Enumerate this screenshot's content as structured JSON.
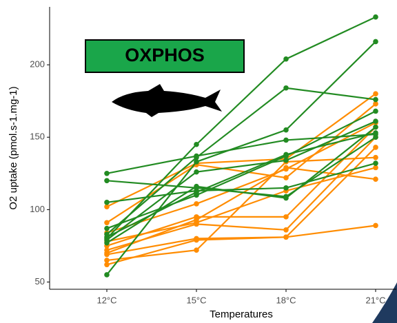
{
  "chart_data": {
    "type": "line",
    "annotation": "OXPHOS",
    "x_label": "Temperatures",
    "y_label": "O2 uptake (pmol.s-1.mg-1)",
    "categories": [
      "12°C",
      "15°C",
      "18°C",
      "21°C"
    ],
    "ylim": [
      45,
      240
    ],
    "yticks": [
      50,
      100,
      150,
      200
    ],
    "series": [
      {
        "color": "#ff8c00",
        "values": [
          102,
          132,
          135,
          180
        ]
      },
      {
        "color": "#ff8c00",
        "values": [
          91,
          131,
          122,
          173
        ]
      },
      {
        "color": "#ff8c00",
        "values": [
          84,
          104,
          128,
          160
        ]
      },
      {
        "color": "#ff8c00",
        "values": [
          75,
          95,
          95,
          157
        ]
      },
      {
        "color": "#ff8c00",
        "values": [
          72,
          90,
          86,
          150
        ]
      },
      {
        "color": "#ff8c00",
        "values": [
          69,
          80,
          81,
          143
        ]
      },
      {
        "color": "#ff8c00",
        "values": [
          65,
          72,
          133,
          136
        ]
      },
      {
        "color": "#ff8c00",
        "values": [
          62,
          79,
          81,
          89
        ]
      },
      {
        "color": "#ff8c00",
        "values": [
          70,
          93,
          129,
          121
        ]
      },
      {
        "color": "#ff8c00",
        "values": [
          78,
          91,
          113,
          129
        ]
      },
      {
        "color": "#228b22",
        "values": [
          80,
          145,
          204,
          233
        ]
      },
      {
        "color": "#228b22",
        "values": [
          83,
          136,
          184,
          176
        ]
      },
      {
        "color": "#228b22",
        "values": [
          55,
          133,
          155,
          216
        ]
      },
      {
        "color": "#228b22",
        "values": [
          125,
          137,
          148,
          152
        ]
      },
      {
        "color": "#228b22",
        "values": [
          120,
          115,
          109,
          150
        ]
      },
      {
        "color": "#228b22",
        "values": [
          105,
          113,
          115,
          132
        ]
      },
      {
        "color": "#228b22",
        "values": [
          87,
          110,
          137,
          168
        ]
      },
      {
        "color": "#228b22",
        "values": [
          79,
          126,
          134,
          161
        ]
      },
      {
        "color": "#228b22",
        "values": [
          77,
          116,
          108,
          157
        ]
      },
      {
        "color": "#228b22",
        "values": [
          81,
          112,
          138,
          153
        ]
      }
    ]
  }
}
